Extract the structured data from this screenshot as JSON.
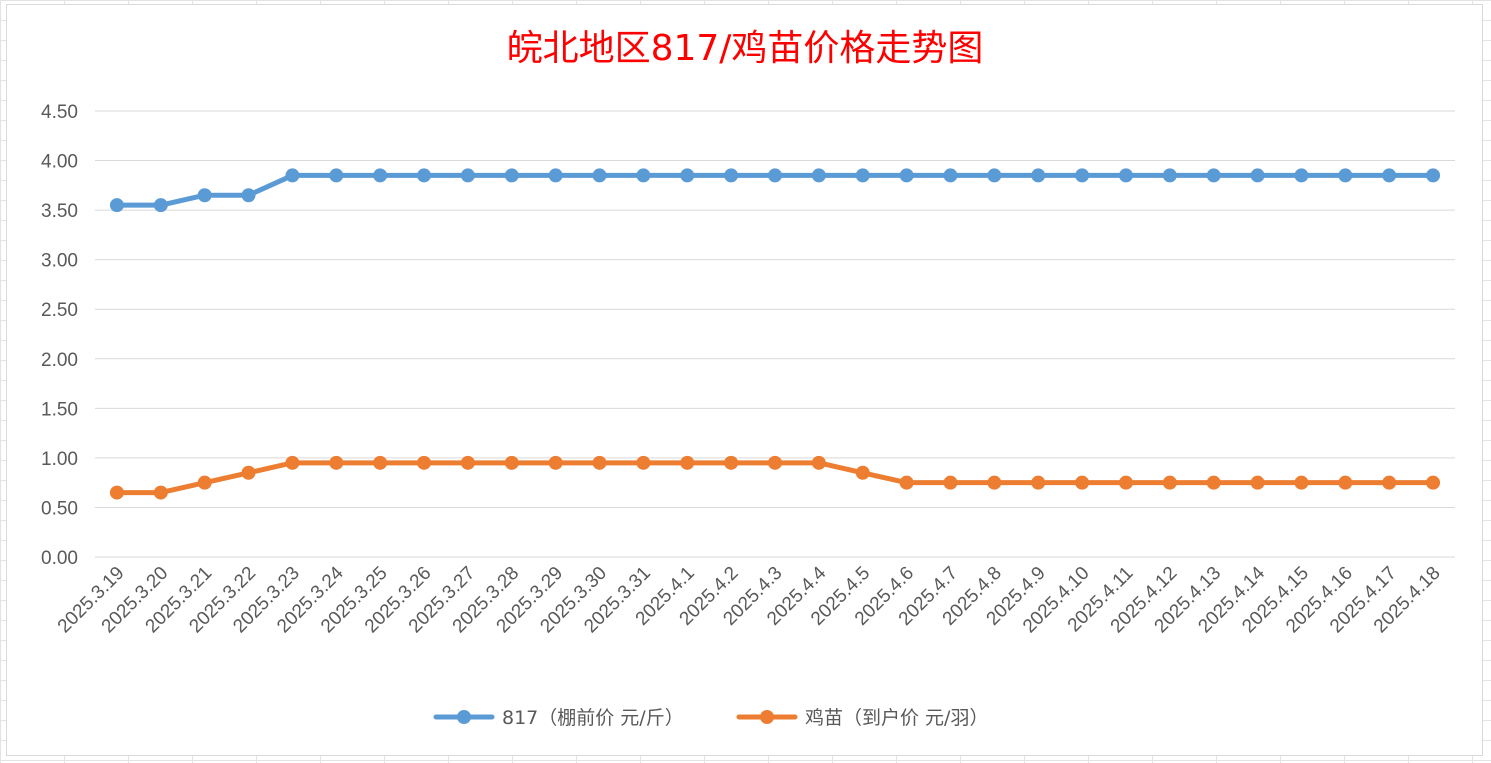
{
  "chart_data": {
    "type": "line",
    "title": "皖北地区817/鸡苗价格走势图",
    "categories": [
      "2025.3.19",
      "2025.3.20",
      "2025.3.21",
      "2025.3.22",
      "2025.3.23",
      "2025.3.24",
      "2025.3.25",
      "2025.3.26",
      "2025.3.27",
      "2025.3.28",
      "2025.3.29",
      "2025.3.30",
      "2025.3.31",
      "2025.4.1",
      "2025.4.2",
      "2025.4.3",
      "2025.4.4",
      "2025.4.5",
      "2025.4.6",
      "2025.4.7",
      "2025.4.8",
      "2025.4.9",
      "2025.4.10",
      "2025.4.11",
      "2025.4.12",
      "2025.4.13",
      "2025.4.14",
      "2025.4.15",
      "2025.4.16",
      "2025.4.17",
      "2025.4.18"
    ],
    "series": [
      {
        "name": "817（棚前价 元/斤）",
        "color": "#5b9bd5",
        "values": [
          3.55,
          3.55,
          3.65,
          3.65,
          3.85,
          3.85,
          3.85,
          3.85,
          3.85,
          3.85,
          3.85,
          3.85,
          3.85,
          3.85,
          3.85,
          3.85,
          3.85,
          3.85,
          3.85,
          3.85,
          3.85,
          3.85,
          3.85,
          3.85,
          3.85,
          3.85,
          3.85,
          3.85,
          3.85,
          3.85,
          3.85
        ]
      },
      {
        "name": "鸡苗（到户价 元/羽）",
        "color": "#ed7d31",
        "values": [
          0.65,
          0.65,
          0.75,
          0.85,
          0.95,
          0.95,
          0.95,
          0.95,
          0.95,
          0.95,
          0.95,
          0.95,
          0.95,
          0.95,
          0.95,
          0.95,
          0.95,
          0.85,
          0.75,
          0.75,
          0.75,
          0.75,
          0.75,
          0.75,
          0.75,
          0.75,
          0.75,
          0.75,
          0.75,
          0.75,
          0.75
        ]
      }
    ],
    "y_ticks": [
      "0.00",
      "0.50",
      "1.00",
      "1.50",
      "2.00",
      "2.50",
      "3.00",
      "3.50",
      "4.00",
      "4.50"
    ],
    "ylim": [
      0,
      4.5
    ],
    "xlabel": "",
    "ylabel": "",
    "grid": true,
    "legend_position": "bottom"
  }
}
